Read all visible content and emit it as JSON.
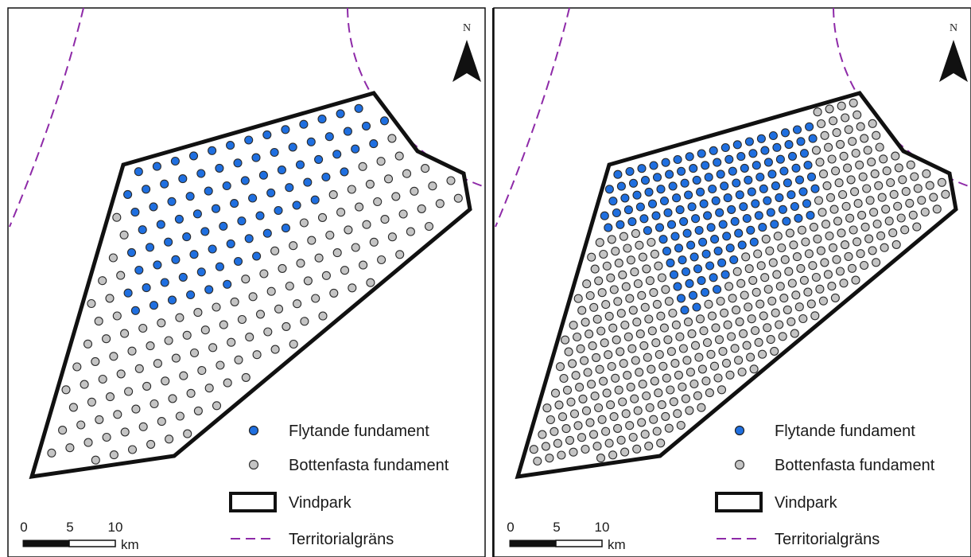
{
  "maps": [
    {
      "id": "left",
      "legend": {
        "floating_label": "Flytande fundament",
        "fixed_label": "Bottenfasta fundament",
        "park_label": "Vindpark",
        "border_label": "Territorialgräns"
      },
      "scale": {
        "ticks": [
          "0",
          "5",
          "10"
        ],
        "unit": "km"
      },
      "north": "N",
      "turbine_pattern": "fewer-larger-spacing"
    },
    {
      "id": "right",
      "legend": {
        "floating_label": "Flytande fundament",
        "fixed_label": "Bottenfasta fundament",
        "park_label": "Vindpark",
        "border_label": "Territorialgräns"
      },
      "scale": {
        "ticks": [
          "0",
          "5",
          "10"
        ],
        "unit": "km"
      },
      "north": "N",
      "turbine_pattern": "denser-smaller-spacing"
    }
  ],
  "colors": {
    "floating": "#1f6fe0",
    "fixed": "#c4c4c4",
    "outline": "#111111",
    "border": "#8e2aa8"
  }
}
